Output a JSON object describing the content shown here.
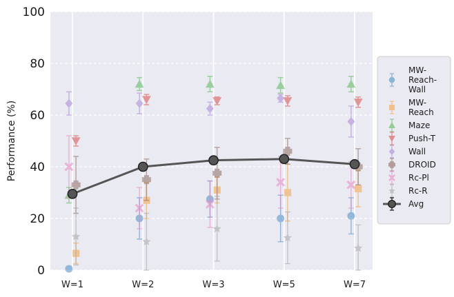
{
  "chart_data": {
    "type": "line",
    "title": "",
    "xlabel": "",
    "ylabel": "Performance (%)",
    "ylim": [
      0,
      100
    ],
    "yticks": [
      0,
      20,
      40,
      60,
      80,
      100
    ],
    "categories": [
      "W=1",
      "W=2",
      "W=3",
      "W=5",
      "W=7"
    ],
    "grid": true,
    "background": "#eaeaf2",
    "legend_position": "right",
    "series": [
      {
        "name": "MW-\nReach-\nWall",
        "marker": "circle",
        "color": "#4c8fc4",
        "values": [
          0.5,
          20,
          27.5,
          20,
          21
        ],
        "err": [
          1,
          8,
          7,
          9,
          7
        ],
        "offset": -0.05
      },
      {
        "name": "MW-\nReach",
        "marker": "square",
        "color": "#f5a54a",
        "values": [
          6.5,
          27,
          31,
          30,
          31.5
        ],
        "err": [
          4,
          7,
          5,
          11,
          7
        ],
        "offset": 0.05
      },
      {
        "name": "Maze",
        "marker": "triangle-up",
        "color": "#5cb85c",
        "values": [
          29,
          72,
          72,
          71.5,
          72
        ],
        "err": [
          3,
          2.5,
          3,
          3,
          3
        ],
        "offset": -0.05
      },
      {
        "name": "Push-T",
        "marker": "triangle-down",
        "color": "#d9534f",
        "values": [
          50,
          66,
          65.5,
          65.5,
          65
        ],
        "err": [
          2,
          2,
          1.5,
          2,
          2
        ],
        "offset": 0.05
      },
      {
        "name": "Wall",
        "marker": "diamond",
        "color": "#a987d4",
        "values": [
          64.5,
          64.5,
          62.5,
          66.5,
          57.5
        ],
        "err": [
          4.5,
          4,
          2.5,
          1.5,
          6
        ],
        "offset": -0.05
      },
      {
        "name": "DROID",
        "marker": "plus",
        "color": "#8c6d62",
        "values": [
          33,
          35,
          37.5,
          46,
          40
        ],
        "err": [
          11,
          8,
          10,
          5,
          7
        ],
        "offset": 0.05
      },
      {
        "name": "Rc-Pl",
        "marker": "cross",
        "color": "#e78ac3",
        "values": [
          40,
          24,
          25.5,
          34,
          33
        ],
        "err": [
          12,
          8,
          9,
          10,
          9
        ],
        "offset": -0.05
      },
      {
        "name": "Rc-R",
        "marker": "star",
        "color": "#a6a6a6",
        "values": [
          13,
          11,
          16,
          12.5,
          8.5
        ],
        "err": [
          11,
          11,
          12.5,
          10,
          9
        ],
        "offset": 0.05
      },
      {
        "name": "Avg",
        "marker": "circle-line",
        "color": "#555555",
        "values": [
          29.5,
          40,
          42.5,
          43,
          41
        ],
        "err": [
          0.8,
          0.8,
          0.8,
          0.8,
          0.8
        ],
        "offset": 0
      }
    ]
  }
}
